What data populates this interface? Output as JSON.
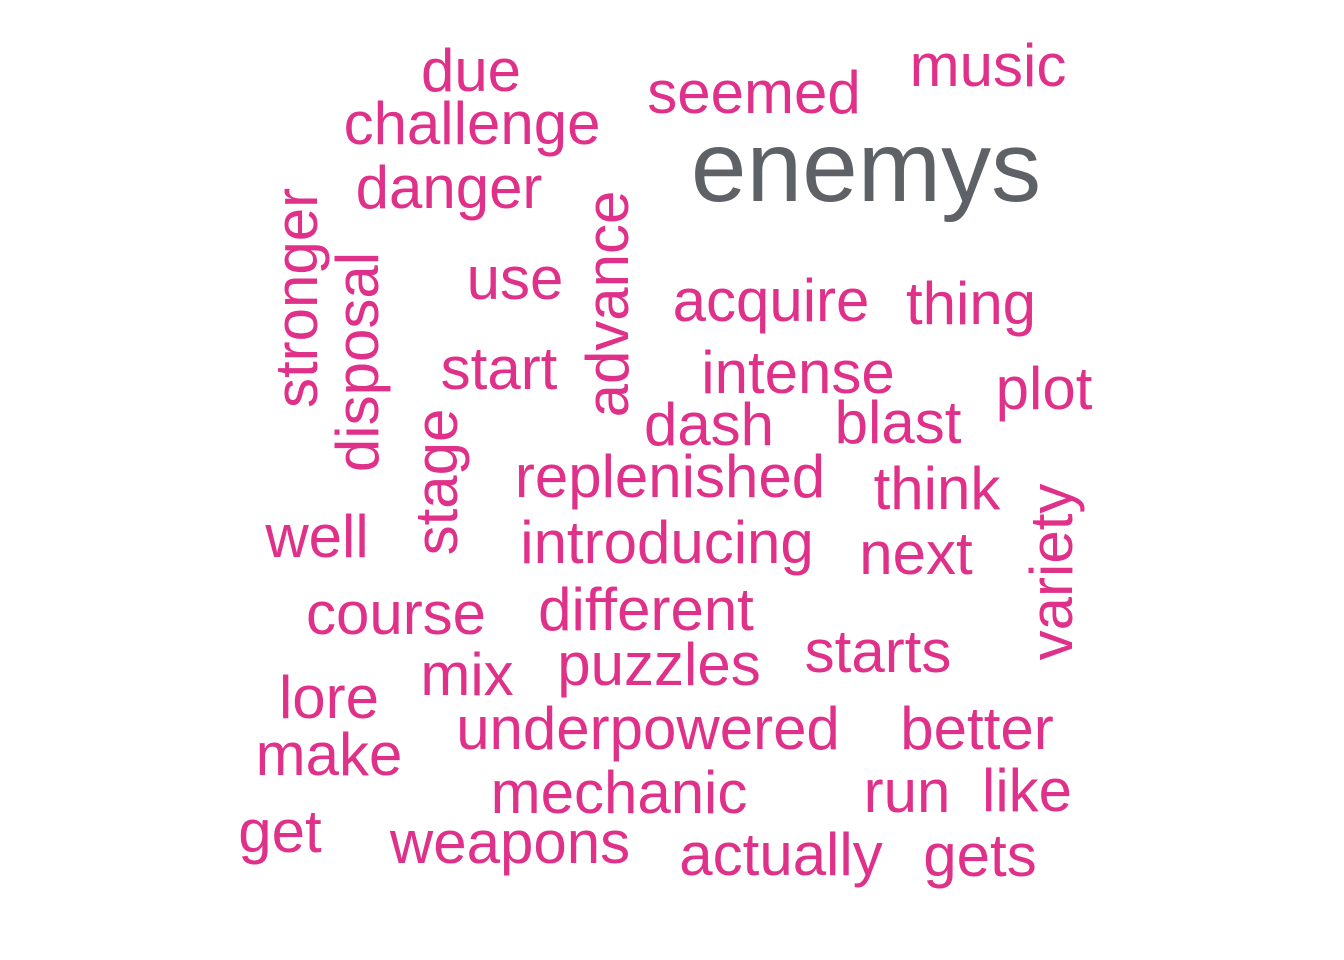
{
  "colors": {
    "primary": "#e0318a",
    "highlight": "#5e6266",
    "background": "#ffffff"
  },
  "words": [
    {
      "text": "enemys",
      "highlight": true
    },
    {
      "text": "due"
    },
    {
      "text": "music"
    },
    {
      "text": "seemed"
    },
    {
      "text": "challenge"
    },
    {
      "text": "danger"
    },
    {
      "text": "stronger",
      "rotated": true
    },
    {
      "text": "disposal",
      "rotated": true
    },
    {
      "text": "advance",
      "rotated": true
    },
    {
      "text": "use"
    },
    {
      "text": "acquire"
    },
    {
      "text": "thing"
    },
    {
      "text": "start"
    },
    {
      "text": "intense"
    },
    {
      "text": "plot"
    },
    {
      "text": "dash"
    },
    {
      "text": "blast"
    },
    {
      "text": "stage",
      "rotated": true
    },
    {
      "text": "replenished"
    },
    {
      "text": "think"
    },
    {
      "text": "variety",
      "rotated": true
    },
    {
      "text": "well"
    },
    {
      "text": "introducing"
    },
    {
      "text": "next"
    },
    {
      "text": "course"
    },
    {
      "text": "different"
    },
    {
      "text": "starts"
    },
    {
      "text": "mix"
    },
    {
      "text": "puzzles"
    },
    {
      "text": "lore"
    },
    {
      "text": "underpowered"
    },
    {
      "text": "better"
    },
    {
      "text": "make"
    },
    {
      "text": "mechanic"
    },
    {
      "text": "run"
    },
    {
      "text": "like"
    },
    {
      "text": "get"
    },
    {
      "text": "weapons"
    },
    {
      "text": "actually"
    },
    {
      "text": "gets"
    }
  ]
}
